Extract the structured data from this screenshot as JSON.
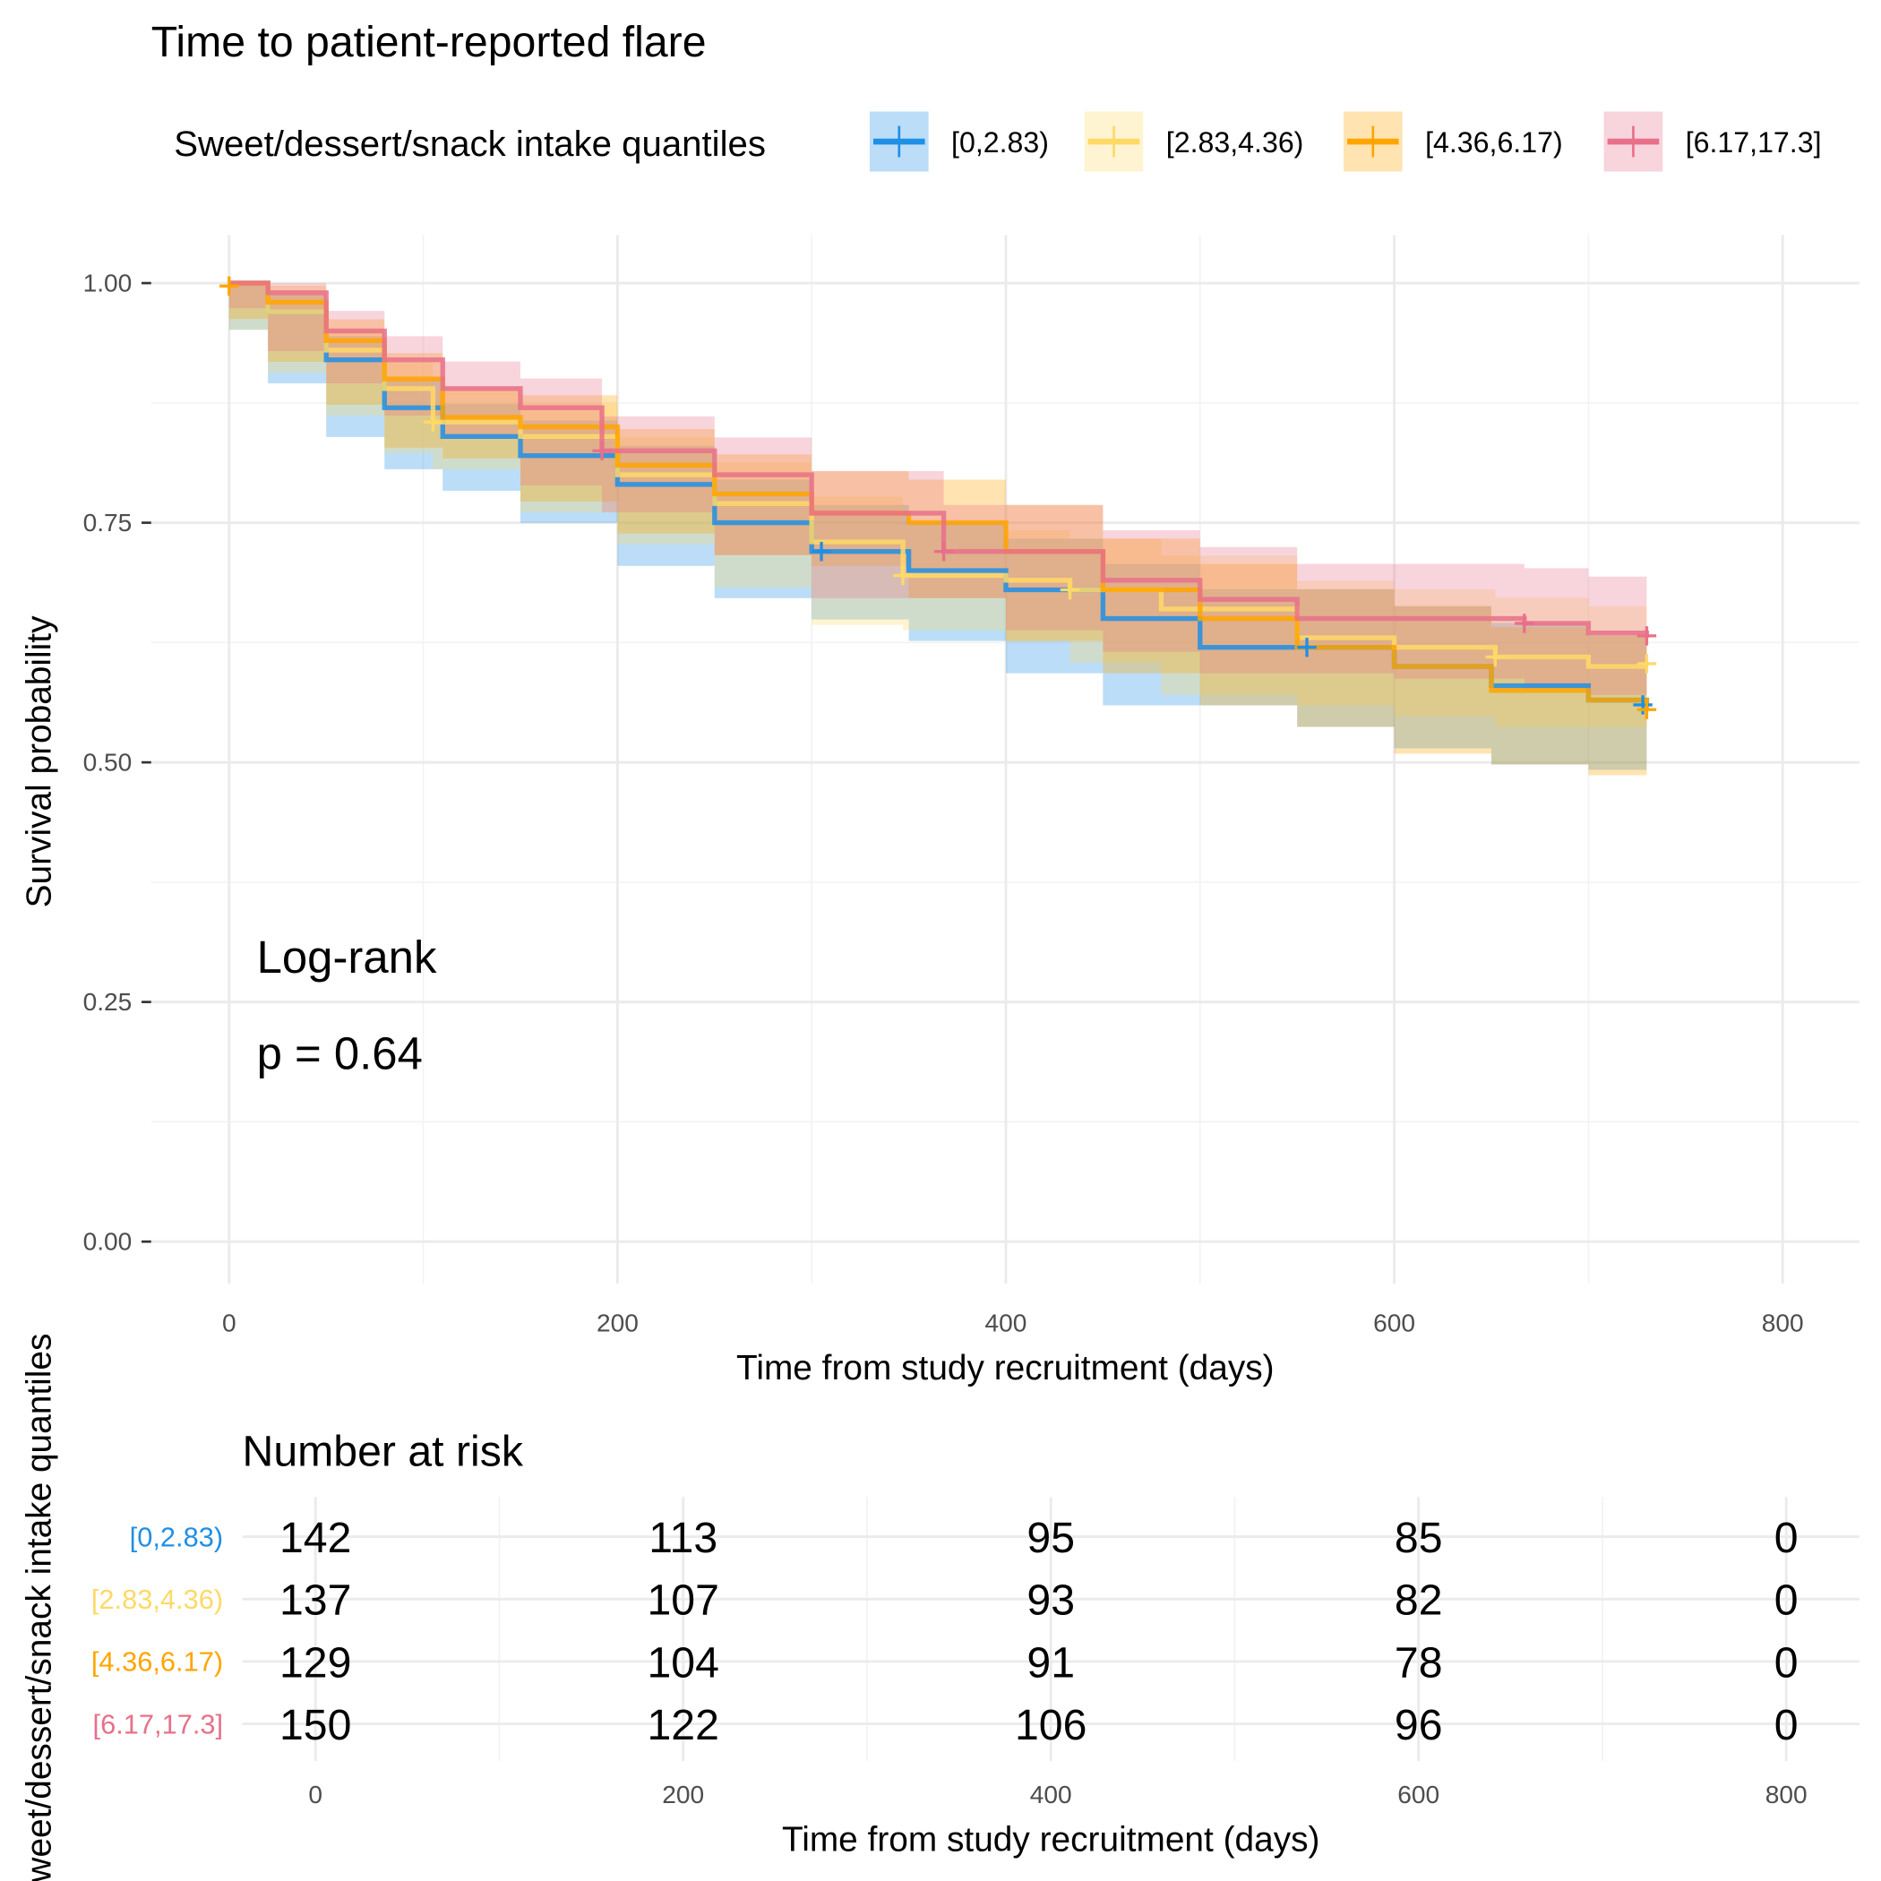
{
  "chart_data": {
    "type": "line",
    "subtype": "kaplan-meier",
    "title": "Time to patient-reported flare",
    "legend_title": "Sweet/dessert/snack intake quantiles",
    "legend_position": "top",
    "xlabel": "Time from study recruitment (days)",
    "ylabel": "Survival probability",
    "xlim": [
      0,
      800
    ],
    "ylim": [
      0,
      1
    ],
    "x_ticks": [
      "0",
      "200",
      "400",
      "600",
      "800"
    ],
    "y_ticks": [
      "0.00",
      "0.25",
      "0.50",
      "0.75",
      "1.00"
    ],
    "grid": true,
    "annotation": {
      "line1": "Log-rank",
      "line2": "p = 0.64"
    },
    "series": [
      {
        "name": "[0,2.83)",
        "color": "#1f8fe5",
        "points": [
          [
            0,
            1
          ],
          [
            20,
            0.97
          ],
          [
            50,
            0.92
          ],
          [
            80,
            0.87
          ],
          [
            110,
            0.84
          ],
          [
            150,
            0.82
          ],
          [
            200,
            0.79
          ],
          [
            250,
            0.75
          ],
          [
            300,
            0.72
          ],
          [
            350,
            0.7
          ],
          [
            400,
            0.68
          ],
          [
            450,
            0.65
          ],
          [
            500,
            0.62
          ],
          [
            550,
            0.62
          ],
          [
            600,
            0.6
          ],
          [
            650,
            0.58
          ],
          [
            700,
            0.565
          ],
          [
            730,
            0.56
          ]
        ],
        "censored": [
          [
            305,
            0.72
          ],
          [
            555,
            0.62
          ],
          [
            728,
            0.56
          ]
        ]
      },
      {
        "name": "[2.83,4.36)",
        "color": "#ffd966",
        "points": [
          [
            0,
            1
          ],
          [
            20,
            0.97
          ],
          [
            50,
            0.93
          ],
          [
            80,
            0.89
          ],
          [
            105,
            0.855
          ],
          [
            150,
            0.84
          ],
          [
            200,
            0.8
          ],
          [
            250,
            0.77
          ],
          [
            300,
            0.73
          ],
          [
            347,
            0.695
          ],
          [
            400,
            0.69
          ],
          [
            433,
            0.68
          ],
          [
            480,
            0.66
          ],
          [
            550,
            0.63
          ],
          [
            600,
            0.62
          ],
          [
            652,
            0.61
          ],
          [
            700,
            0.6
          ],
          [
            730,
            0.6
          ]
        ],
        "censored": [
          [
            105,
            0.855
          ],
          [
            347,
            0.695
          ],
          [
            433,
            0.68
          ],
          [
            652,
            0.61
          ],
          [
            730,
            0.603
          ]
        ]
      },
      {
        "name": "[4.36,6.17)",
        "color": "#ffa500",
        "points": [
          [
            0,
            1
          ],
          [
            20,
            0.98
          ],
          [
            50,
            0.94
          ],
          [
            80,
            0.9
          ],
          [
            110,
            0.86
          ],
          [
            150,
            0.85
          ],
          [
            200,
            0.81
          ],
          [
            250,
            0.78
          ],
          [
            300,
            0.76
          ],
          [
            350,
            0.75
          ],
          [
            400,
            0.72
          ],
          [
            450,
            0.68
          ],
          [
            500,
            0.65
          ],
          [
            550,
            0.62
          ],
          [
            600,
            0.6
          ],
          [
            650,
            0.575
          ],
          [
            700,
            0.565
          ],
          [
            730,
            0.555
          ]
        ],
        "censored": [
          [
            0,
            0.997
          ],
          [
            730,
            0.555
          ]
        ]
      },
      {
        "name": "[6.17,17.3]",
        "color": "#e8708a",
        "points": [
          [
            0,
            1
          ],
          [
            20,
            0.99
          ],
          [
            50,
            0.95
          ],
          [
            80,
            0.92
          ],
          [
            110,
            0.89
          ],
          [
            150,
            0.87
          ],
          [
            192,
            0.825
          ],
          [
            250,
            0.8
          ],
          [
            300,
            0.76
          ],
          [
            368,
            0.72
          ],
          [
            400,
            0.72
          ],
          [
            450,
            0.69
          ],
          [
            500,
            0.67
          ],
          [
            550,
            0.65
          ],
          [
            600,
            0.65
          ],
          [
            667,
            0.645
          ],
          [
            700,
            0.635
          ],
          [
            730,
            0.63
          ]
        ],
        "censored": [
          [
            192,
            0.825
          ],
          [
            368,
            0.72
          ],
          [
            667,
            0.645
          ],
          [
            730,
            0.632
          ]
        ]
      }
    ],
    "risk_table": {
      "title": "Number at risk",
      "ylabel": "Sweet/dessert/snack intake quantiles",
      "xlabel": "Time from study recruitment (days)",
      "times": [
        "0",
        "200",
        "400",
        "600",
        "800"
      ],
      "rows": [
        {
          "name": "[0,2.83)",
          "values": [
            "142",
            "113",
            "95",
            "85",
            "0"
          ]
        },
        {
          "name": "[2.83,4.36)",
          "values": [
            "137",
            "107",
            "93",
            "82",
            "0"
          ]
        },
        {
          "name": "[4.36,6.17)",
          "values": [
            "129",
            "104",
            "91",
            "78",
            "0"
          ]
        },
        {
          "name": "[6.17,17.3]",
          "values": [
            "150",
            "122",
            "106",
            "96",
            "0"
          ]
        }
      ]
    }
  }
}
